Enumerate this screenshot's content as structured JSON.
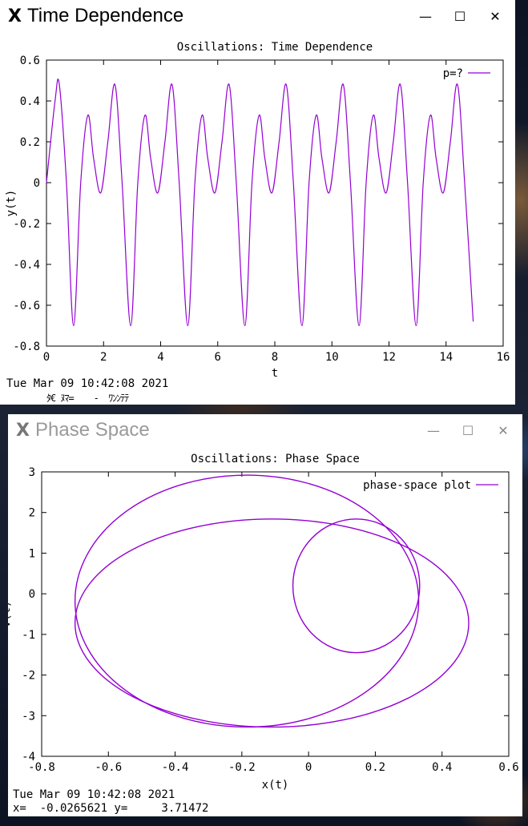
{
  "windows": [
    {
      "title": "Time Dependence",
      "status_time": "Tue Mar 09 10:42:08 2021",
      "status_garbled": "ﾀ€ ﾇﾏ=    -  ﾜﾝﾝﾃﾃ"
    },
    {
      "title": "Phase Space",
      "status_time": "Tue Mar 09 10:42:08 2021",
      "coords": "x=  -0.0265621 y=     3.71472"
    }
  ],
  "window_controls": {
    "minimize": "—",
    "maximize": "☐",
    "close": "✕"
  },
  "app_icon": "x11-logo-icon",
  "colors": {
    "line": "#9400d3",
    "axes": "#000000",
    "bg": "#ffffff"
  },
  "chart_data": [
    {
      "type": "line",
      "title": "Oscillations: Time Dependence",
      "xlabel": "t",
      "ylabel": "y(t)",
      "xlim": [
        0,
        16
      ],
      "ylim": [
        -0.8,
        0.6
      ],
      "xticks": [
        0,
        2,
        4,
        6,
        8,
        10,
        12,
        14,
        16
      ],
      "yticks": [
        -0.8,
        -0.6,
        -0.4,
        -0.2,
        0,
        0.2,
        0.4,
        0.6
      ],
      "xtick_labels": [
        "0",
        "2",
        "4",
        "6",
        "8",
        "10",
        "12",
        "14",
        "16"
      ],
      "ytick_labels": [
        "-0.8",
        "-0.6",
        "-0.4",
        "-0.2",
        "0",
        "0.2",
        "0.4",
        "0.6"
      ],
      "legend_position": "top-right",
      "grid": false,
      "series": [
        {
          "name": "p=?",
          "x": [
            0,
            0.3,
            0.45,
            0.7,
            0.95,
            1.2,
            1.45,
            1.65,
            1.9,
            2.15,
            2.4,
            2.65,
            2.95,
            3.2,
            3.45,
            3.65,
            3.9,
            4.15,
            4.4,
            4.65,
            4.95,
            5.2,
            5.45,
            5.65,
            5.9,
            6.15,
            6.4,
            6.65,
            6.95,
            7.2,
            7.45,
            7.65,
            7.9,
            8.15,
            8.4,
            8.65,
            8.95,
            9.2,
            9.45,
            9.65,
            9.9,
            10.15,
            10.4,
            10.65,
            10.95,
            11.2,
            11.45,
            11.65,
            11.9,
            12.15,
            12.4,
            12.65,
            12.95,
            13.2,
            13.45,
            13.65,
            13.9,
            14.15,
            14.4,
            14.65,
            14.95
          ],
          "y": [
            0.0,
            0.4,
            0.48,
            0.0,
            -0.7,
            0.0,
            0.33,
            0.12,
            -0.05,
            0.2,
            0.48,
            0.0,
            -0.7,
            0.0,
            0.33,
            0.12,
            -0.05,
            0.2,
            0.48,
            0.0,
            -0.7,
            0.0,
            0.33,
            0.12,
            -0.05,
            0.2,
            0.48,
            0.0,
            -0.7,
            0.0,
            0.33,
            0.12,
            -0.05,
            0.2,
            0.48,
            0.0,
            -0.7,
            0.0,
            0.33,
            0.12,
            -0.05,
            0.2,
            0.48,
            0.0,
            -0.7,
            0.0,
            0.33,
            0.12,
            -0.05,
            0.2,
            0.48,
            0.0,
            -0.7,
            0.0,
            0.33,
            0.12,
            -0.05,
            0.2,
            0.48,
            0.0,
            -0.68
          ]
        }
      ]
    },
    {
      "type": "line",
      "title": "Oscillations: Phase Space",
      "xlabel": "x(t)",
      "ylabel": "v(t)",
      "xlim": [
        -0.8,
        0.6
      ],
      "ylim": [
        -4,
        3
      ],
      "xticks": [
        -0.8,
        -0.6,
        -0.4,
        -0.2,
        0,
        0.2,
        0.4,
        0.6
      ],
      "yticks": [
        -4,
        -3,
        -2,
        -1,
        0,
        1,
        2,
        3
      ],
      "xtick_labels": [
        "-0.8",
        "-0.6",
        "-0.4",
        "-0.2",
        "0",
        "0.2",
        "0.4",
        "0.6"
      ],
      "ytick_labels": [
        "-4",
        "-3",
        "-2",
        "-1",
        "0",
        "1",
        "2",
        "3"
      ],
      "legend_position": "top-right",
      "grid": false,
      "series": [
        {
          "name": "phase-space plot",
          "loops": [
            {
              "x_center": -0.185,
              "x_halfwidth": 0.515,
              "v_top": 2.92,
              "v_bottom": -3.28
            },
            {
              "x_center": 0.143,
              "x_halfwidth": 0.19,
              "v_top": 1.84,
              "v_bottom": -1.45
            },
            {
              "x_center": -0.11,
              "x_halfwidth": 0.59,
              "v_top": 1.84,
              "v_bottom": -3.28
            }
          ]
        }
      ]
    }
  ]
}
